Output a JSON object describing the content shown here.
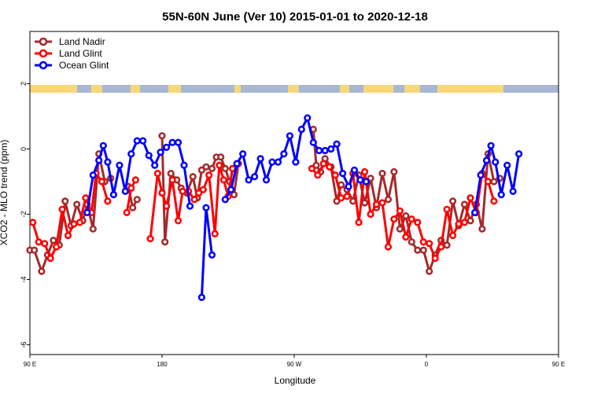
{
  "chart_data": {
    "type": "line",
    "title": "55N-60N June (Ver 10)   2015-01-01 to 2020-12-18",
    "xlabel": "Longitude",
    "ylabel": "XCO2 - MLO trend (ppm)",
    "xlim": [
      90,
      450
    ],
    "ylim": [
      -6.3,
      3.6
    ],
    "x_ticks": [
      {
        "value": 90,
        "label": "90 E"
      },
      {
        "value": 180,
        "label": "180"
      },
      {
        "value": 270,
        "label": "90 W"
      },
      {
        "value": 360,
        "label": "0"
      },
      {
        "value": 450,
        "label": "90 E"
      },
      {
        "value": 540,
        "label": "180"
      }
    ],
    "y_ticks": [
      -6,
      -4,
      -2,
      0,
      2
    ],
    "legend_position": "top-left",
    "series": [
      {
        "name": "Land Nadir",
        "color": "#a52a2a",
        "points": [
          [
            90,
            -3.1
          ],
          [
            93,
            -3.1
          ],
          [
            98,
            -3.75
          ],
          [
            102,
            -3.25
          ],
          [
            106,
            -2.8
          ],
          [
            110,
            -2.95
          ],
          [
            114,
            -1.6
          ],
          [
            118,
            -2.35
          ],
          [
            122,
            -1.7
          ],
          [
            126,
            -2.2
          ],
          [
            129,
            -1.7
          ],
          [
            133,
            -2.45
          ],
          [
            137,
            -0.15
          ],
          [
            141,
            -1.0
          ],
          [
            145,
            -0.9
          ],
          [
            null,
            null
          ],
          [
            157,
            -1.15
          ],
          [
            160,
            -1.8
          ],
          [
            163,
            -1.55
          ],
          [
            null,
            null
          ],
          [
            180,
            0.4
          ],
          [
            182,
            -2.85
          ],
          [
            186,
            -0.75
          ],
          [
            190,
            -0.95
          ],
          [
            193,
            -1.2
          ],
          [
            197,
            -1.35
          ],
          [
            201,
            -0.85
          ],
          [
            204,
            -1.5
          ],
          [
            207,
            -0.65
          ],
          [
            210,
            -0.55
          ],
          [
            214,
            -0.6
          ],
          [
            217,
            -0.25
          ],
          [
            220,
            -0.25
          ],
          [
            223,
            -0.6
          ],
          [
            226,
            -1.0
          ],
          [
            229,
            -1.4
          ],
          [
            232,
            -0.45
          ],
          [
            null,
            null
          ],
          [
            283,
            0.6
          ],
          [
            285,
            -0.5
          ],
          [
            288,
            -0.7
          ],
          [
            291,
            -0.3
          ],
          [
            295,
            -0.55
          ],
          [
            299,
            -1.6
          ],
          [
            302,
            -1.1
          ],
          [
            306,
            -1.25
          ],
          [
            310,
            -1.6
          ],
          [
            314,
            -0.8
          ],
          [
            318,
            -1.65
          ],
          [
            322,
            -0.9
          ],
          [
            326,
            -1.8
          ],
          [
            330,
            -0.75
          ],
          [
            334,
            -1.55
          ],
          [
            338,
            -0.7
          ],
          [
            342,
            -2.45
          ],
          [
            346,
            -2.05
          ],
          [
            350,
            -2.85
          ],
          [
            354,
            -3.1
          ],
          [
            358,
            -3.1
          ],
          [
            362,
            -3.75
          ],
          [
            366,
            -3.25
          ],
          [
            370,
            -2.8
          ],
          [
            374,
            -2.95
          ],
          [
            378,
            -1.6
          ],
          [
            382,
            -2.35
          ],
          [
            386,
            -1.7
          ],
          [
            390,
            -2.2
          ],
          [
            394,
            -1.7
          ],
          [
            398,
            -2.45
          ],
          [
            402,
            -0.15
          ],
          [
            406,
            -1.0
          ],
          [
            410,
            -0.9
          ]
        ]
      },
      {
        "name": "Land Glint",
        "color": "#ff0000",
        "points": [
          [
            92,
            -2.25
          ],
          [
            96,
            -2.85
          ],
          [
            100,
            -2.9
          ],
          [
            104,
            -3.35
          ],
          [
            108,
            -3.0
          ],
          [
            112,
            -1.85
          ],
          [
            116,
            -2.65
          ],
          [
            120,
            -2.3
          ],
          [
            124,
            -2.25
          ],
          [
            128,
            -1.5
          ],
          [
            132,
            -1.95
          ],
          [
            135,
            -0.75
          ],
          [
            139,
            -1.0
          ],
          [
            143,
            -1.6
          ],
          [
            null,
            null
          ],
          [
            156,
            -1.95
          ],
          [
            159,
            -1.2
          ],
          [
            162,
            -0.95
          ],
          [
            null,
            null
          ],
          [
            172,
            -2.75
          ],
          [
            177,
            -0.75
          ],
          [
            180,
            -1.35
          ],
          [
            183,
            -1.75
          ],
          [
            187,
            -0.95
          ],
          [
            191,
            -2.2
          ],
          [
            194,
            -1.3
          ],
          [
            198,
            -1.3
          ],
          [
            202,
            -1.55
          ],
          [
            205,
            -1.35
          ],
          [
            208,
            -1.25
          ],
          [
            212,
            -0.8
          ],
          [
            216,
            -2.6
          ],
          [
            219,
            -0.5
          ],
          [
            222,
            -0.95
          ],
          [
            225,
            -1.45
          ],
          [
            228,
            -0.6
          ],
          [
            null,
            null
          ],
          [
            282,
            -0.6
          ],
          [
            286,
            -0.8
          ],
          [
            290,
            -0.45
          ],
          [
            294,
            -0.55
          ],
          [
            298,
            -0.8
          ],
          [
            302,
            -1.5
          ],
          [
            306,
            -1.45
          ],
          [
            310,
            -0.75
          ],
          [
            314,
            -2.25
          ],
          [
            318,
            -0.7
          ],
          [
            322,
            -2.0
          ],
          [
            326,
            -1.7
          ],
          [
            330,
            -1.65
          ],
          [
            334,
            -3.0
          ],
          [
            338,
            -2.15
          ],
          [
            342,
            -1.9
          ],
          [
            346,
            -2.7
          ],
          [
            350,
            -2.15
          ],
          [
            354,
            -2.25
          ],
          [
            358,
            -2.85
          ],
          [
            362,
            -2.9
          ],
          [
            366,
            -3.35
          ],
          [
            370,
            -3.0
          ],
          [
            374,
            -1.85
          ],
          [
            378,
            -2.65
          ],
          [
            382,
            -2.3
          ],
          [
            386,
            -2.25
          ],
          [
            390,
            -1.5
          ],
          [
            394,
            -1.95
          ],
          [
            398,
            -0.75
          ],
          [
            402,
            -1.0
          ],
          [
            406,
            -1.6
          ]
        ]
      },
      {
        "name": "Ocean Glint",
        "color": "#0000ff",
        "points": [
          [
            129,
            -1.95
          ],
          [
            133,
            -0.8
          ],
          [
            137,
            -0.35
          ],
          [
            140,
            0.1
          ],
          [
            143,
            -0.4
          ],
          [
            147,
            -1.4
          ],
          [
            151,
            -0.5
          ],
          [
            155,
            -1.3
          ],
          [
            159,
            -0.15
          ],
          [
            163,
            0.25
          ],
          [
            167,
            0.25
          ],
          [
            171,
            -0.2
          ],
          [
            175,
            -0.5
          ],
          [
            179,
            -0.1
          ],
          [
            183,
            0.05
          ],
          [
            187,
            0.2
          ],
          [
            191,
            0.2
          ],
          [
            195,
            -0.5
          ],
          [
            199,
            -1.75
          ],
          [
            null,
            null
          ],
          [
            207,
            -4.55
          ],
          [
            210,
            -1.8
          ],
          [
            214,
            -3.25
          ],
          [
            null,
            null
          ],
          [
            223,
            -1.55
          ],
          [
            227,
            -1.25
          ],
          [
            231,
            -0.45
          ],
          [
            235,
            -0.15
          ],
          [
            239,
            -0.95
          ],
          [
            243,
            -0.85
          ],
          [
            247,
            -0.3
          ],
          [
            251,
            -0.95
          ],
          [
            255,
            -0.4
          ],
          [
            259,
            -0.4
          ],
          [
            263,
            -0.15
          ],
          [
            267,
            0.4
          ],
          [
            271,
            -0.4
          ],
          [
            275,
            0.6
          ],
          [
            279,
            0.95
          ],
          [
            283,
            0.2
          ],
          [
            287,
            -0.05
          ],
          [
            291,
            -0.05
          ],
          [
            295,
            0.0
          ],
          [
            299,
            0.15
          ],
          [
            303,
            -0.75
          ],
          [
            307,
            -1.15
          ],
          [
            311,
            -0.65
          ],
          [
            315,
            -0.95
          ],
          [
            319,
            -1.0
          ],
          [
            null,
            null
          ],
          [
            393,
            -1.95
          ],
          [
            397,
            -0.8
          ],
          [
            401,
            -0.35
          ],
          [
            404,
            0.1
          ],
          [
            407,
            -0.4
          ],
          [
            411,
            -1.4
          ],
          [
            415,
            -0.5
          ],
          [
            419,
            -1.3
          ],
          [
            423,
            -0.15
          ]
        ]
      }
    ]
  }
}
